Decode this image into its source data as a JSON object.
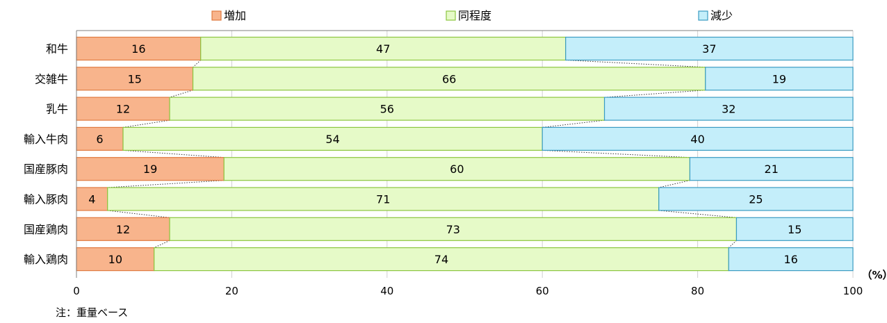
{
  "chart_data": {
    "type": "bar",
    "orientation": "horizontal",
    "stacked": true,
    "categories": [
      "和牛",
      "交雑牛",
      "乳牛",
      "輸入牛肉",
      "国産豚肉",
      "輸入豚肉",
      "国産鶏肉",
      "輸入鶏肉"
    ],
    "series": [
      {
        "name": "増加",
        "color": "#F8B48C",
        "values": [
          16,
          15,
          12,
          6,
          19,
          4,
          12,
          10
        ]
      },
      {
        "name": "同程度",
        "color": "#E6FAC8",
        "values": [
          47,
          66,
          56,
          54,
          60,
          71,
          73,
          74
        ]
      },
      {
        "name": "減少",
        "color": "#C4EEFA",
        "values": [
          37,
          19,
          32,
          40,
          21,
          25,
          15,
          16
        ]
      }
    ],
    "series_border_colors": [
      "#E07A3F",
      "#8CC63F",
      "#3A9BC2"
    ],
    "xlim": [
      0,
      100
    ],
    "xticks": [
      0,
      20,
      40,
      60,
      80,
      100
    ],
    "unit_label": "（%）",
    "legend_position": "top",
    "grid": "vertical",
    "series_connector_lines": "dotted",
    "note": "注：重量ベース"
  }
}
